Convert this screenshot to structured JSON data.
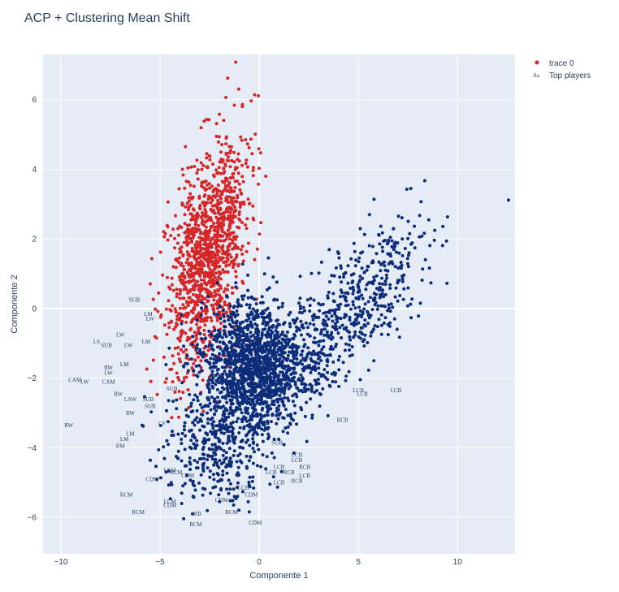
{
  "chart_data": {
    "type": "scatter",
    "title": "ACP + Clustering Mean Shift",
    "xlabel": "Componente 1",
    "ylabel": "Componente 2",
    "xlim": [
      -10.9,
      12.9
    ],
    "ylim": [
      -7.05,
      7.3
    ],
    "x_ticks": [
      -10,
      -5,
      0,
      5,
      10
    ],
    "x_tick_labels": [
      "−10",
      "−5",
      "0",
      "5",
      "10"
    ],
    "y_ticks": [
      -6,
      -4,
      -2,
      0,
      2,
      4,
      6
    ],
    "y_tick_labels": [
      "−6",
      "−4",
      "−2",
      "0",
      "2",
      "4",
      "6"
    ],
    "grid": true,
    "legend_position": "top-right",
    "colors": {
      "cluster_red": "#d62728",
      "cluster_blue": "#0d2d7a",
      "plot_bg": "#e5ecf6",
      "grid": "#ffffff",
      "text": "#2a3f5f"
    },
    "series": [
      {
        "name": "trace 0",
        "mode": "markers"
      },
      {
        "name": "Top players",
        "mode": "text"
      }
    ],
    "cluster_shapes": [
      {
        "color": "#d62728",
        "count": 1250,
        "center": [
          -2.6,
          1.6
        ],
        "axis_dir": [
          0.36,
          0.93
        ],
        "sd_major": 1.75,
        "sd_minor": 0.85
      },
      {
        "color": "#0d2d7a",
        "count": 1500,
        "center": [
          -0.4,
          -1.7
        ],
        "sd_x": 1.3,
        "sd_y": 0.95
      },
      {
        "color": "#0d2d7a",
        "count": 650,
        "center": [
          4.2,
          -0.3
        ],
        "axis_dir": [
          0.88,
          0.48
        ],
        "sd_major": 2.4,
        "sd_minor": 0.75
      },
      {
        "color": "#0d2d7a",
        "count": 330,
        "center": [
          -2.2,
          -4.0
        ],
        "sd_x": 1.3,
        "sd_y": 0.75
      }
    ],
    "labels": [
      {
        "text": "LS",
        "x": -8.2,
        "y": -0.95
      },
      {
        "text": "SUB",
        "x": -7.7,
        "y": -1.05
      },
      {
        "text": "LW",
        "x": -7.0,
        "y": -0.75
      },
      {
        "text": "LW",
        "x": -6.6,
        "y": -1.05
      },
      {
        "text": "LM",
        "x": -5.7,
        "y": -0.95
      },
      {
        "text": "LM",
        "x": -5.6,
        "y": -0.15
      },
      {
        "text": "SUB",
        "x": -6.3,
        "y": 0.25
      },
      {
        "text": "LW",
        "x": -5.5,
        "y": -0.3
      },
      {
        "text": "LM",
        "x": -6.8,
        "y": -1.6
      },
      {
        "text": "LW",
        "x": -7.6,
        "y": -1.85
      },
      {
        "text": "RW",
        "x": -7.6,
        "y": -1.7
      },
      {
        "text": "CAM",
        "x": -9.3,
        "y": -2.05
      },
      {
        "text": "LW",
        "x": -8.8,
        "y": -2.1
      },
      {
        "text": "CAM",
        "x": -7.6,
        "y": -2.1
      },
      {
        "text": "RW",
        "x": -7.1,
        "y": -2.45
      },
      {
        "text": "LAW",
        "x": -6.5,
        "y": -2.6
      },
      {
        "text": "RW",
        "x": -6.5,
        "y": -3.0
      },
      {
        "text": "SUB",
        "x": -5.6,
        "y": -2.6
      },
      {
        "text": "SUB",
        "x": -5.5,
        "y": -2.8
      },
      {
        "text": "SUB",
        "x": -4.4,
        "y": -2.3
      },
      {
        "text": "LM",
        "x": -6.8,
        "y": -3.75
      },
      {
        "text": "LM",
        "x": -6.5,
        "y": -3.6
      },
      {
        "text": "RM",
        "x": -7.0,
        "y": -3.95
      },
      {
        "text": "RW",
        "x": -9.6,
        "y": -3.35
      },
      {
        "text": "CF",
        "x": -4.9,
        "y": -3.3
      },
      {
        "text": "LCB",
        "x": 5.0,
        "y": -2.35
      },
      {
        "text": "LCB",
        "x": 5.2,
        "y": -2.45
      },
      {
        "text": "LCB",
        "x": 6.9,
        "y": -2.35
      },
      {
        "text": "RCB",
        "x": 4.2,
        "y": -3.2
      },
      {
        "text": "SUB",
        "x": 0.9,
        "y": -3.85
      },
      {
        "text": "LCB",
        "x": 1.9,
        "y": -4.2
      },
      {
        "text": "LCB",
        "x": 1.9,
        "y": -4.35
      },
      {
        "text": "RCB",
        "x": 2.3,
        "y": -4.55
      },
      {
        "text": "LCB",
        "x": 1.0,
        "y": -4.55
      },
      {
        "text": "LCB",
        "x": 0.6,
        "y": -4.7
      },
      {
        "text": "RCB",
        "x": 1.5,
        "y": -4.7
      },
      {
        "text": "LCB",
        "x": 2.3,
        "y": -4.8
      },
      {
        "text": "RCB",
        "x": 1.9,
        "y": -4.95
      },
      {
        "text": "LCB",
        "x": 1.0,
        "y": -5.0
      },
      {
        "text": "LCB",
        "x": -0.8,
        "y": -5.15
      },
      {
        "text": "CDM",
        "x": -0.4,
        "y": -5.35
      },
      {
        "text": "LCM",
        "x": -4.5,
        "y": -4.65
      },
      {
        "text": "RCM",
        "x": -4.2,
        "y": -4.7
      },
      {
        "text": "CDM",
        "x": -3.6,
        "y": -4.8
      },
      {
        "text": "CDM",
        "x": -5.4,
        "y": -4.9
      },
      {
        "text": "LCM",
        "x": -4.5,
        "y": -5.55
      },
      {
        "text": "CDM",
        "x": -4.5,
        "y": -5.65
      },
      {
        "text": "CDM",
        "x": -1.9,
        "y": -5.5
      },
      {
        "text": "RCM",
        "x": -6.7,
        "y": -5.35
      },
      {
        "text": "RCM",
        "x": -6.1,
        "y": -5.85
      },
      {
        "text": "RB",
        "x": -3.1,
        "y": -5.9
      },
      {
        "text": "RCM",
        "x": -1.4,
        "y": -5.85
      },
      {
        "text": "RCM",
        "x": -3.2,
        "y": -6.2
      },
      {
        "text": "CDM",
        "x": -0.2,
        "y": -6.15
      }
    ]
  }
}
